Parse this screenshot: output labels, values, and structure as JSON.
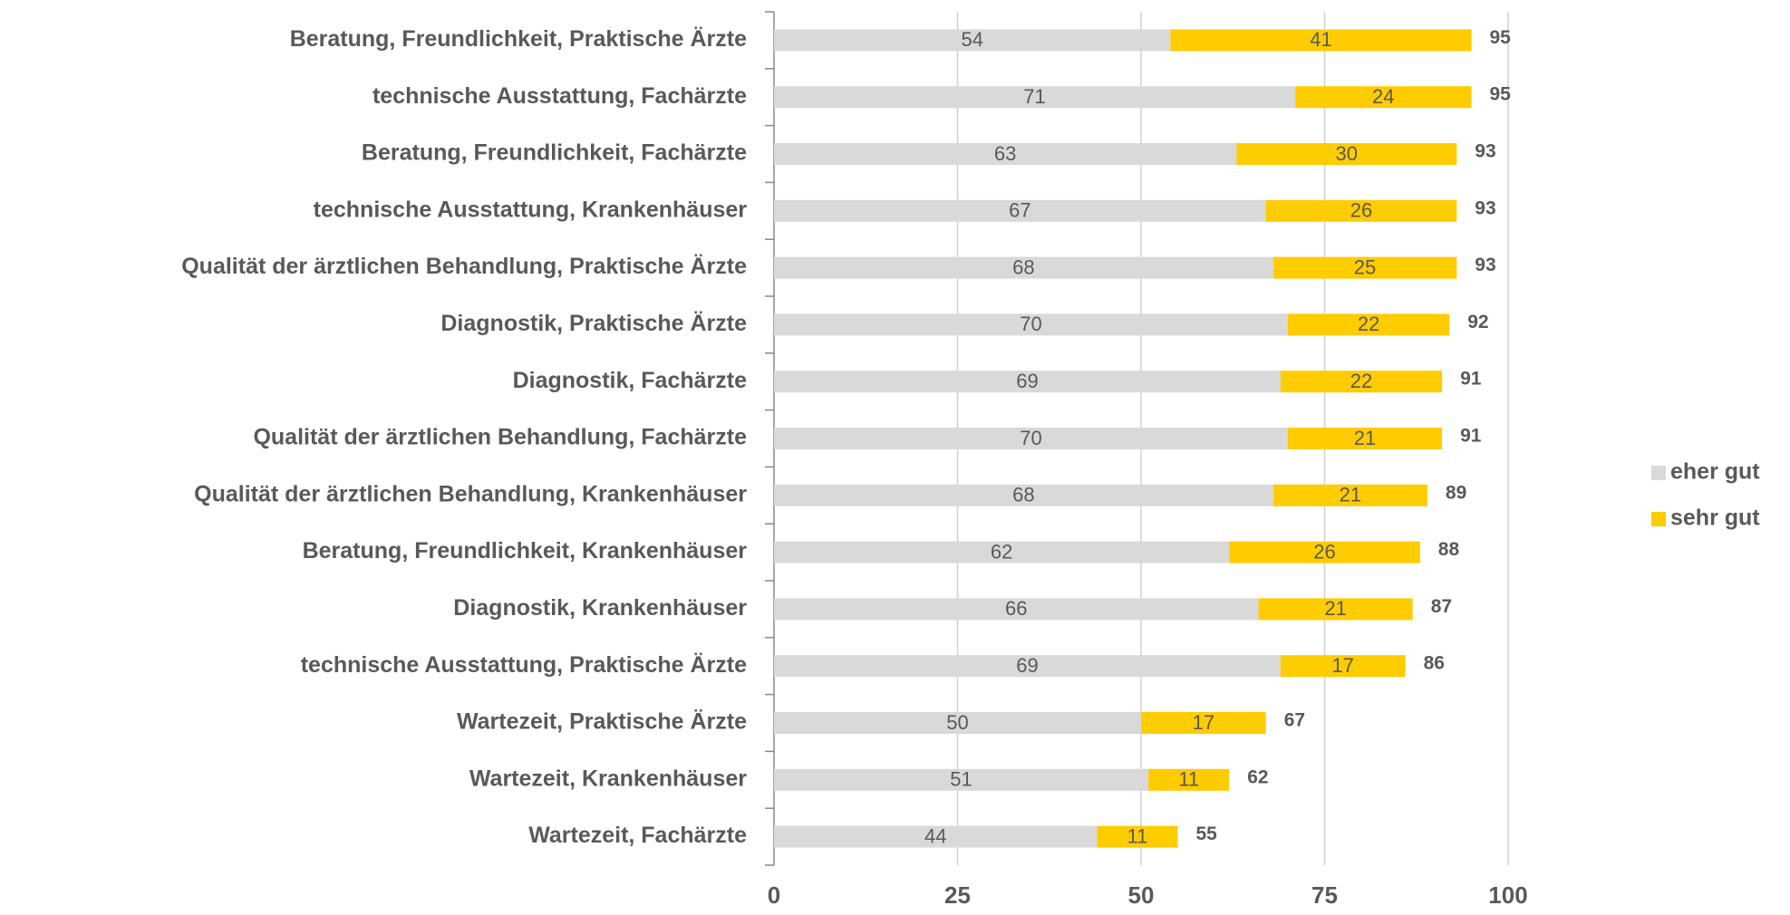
{
  "chart_data": {
    "type": "stacked-bar-horizontal",
    "categories": [
      "Beratung, Freundlichkeit, Praktische Ärzte",
      "technische Ausstattung, Fachärzte",
      "Beratung, Freundlichkeit, Fachärzte",
      "technische Ausstattung, Krankenhäuser",
      "Qualität der ärztlichen Behandlung, Praktische Ärzte",
      "Diagnostik, Praktische Ärzte",
      "Diagnostik, Fachärzte",
      "Qualität der ärztlichen Behandlung, Fachärzte",
      "Qualität der ärztlichen Behandlung, Krankenhäuser",
      "Beratung, Freundlichkeit, Krankenhäuser",
      "Diagnostik, Krankenhäuser",
      "technische Ausstattung, Praktische Ärzte",
      "Wartezeit, Praktische Ärzte",
      "Wartezeit, Krankenhäuser",
      "Wartezeit, Fachärzte"
    ],
    "series": [
      {
        "name": "eher gut",
        "color": "#d9d9d9",
        "values": [
          54,
          71,
          63,
          67,
          68,
          70,
          69,
          70,
          68,
          62,
          66,
          69,
          50,
          51,
          44
        ]
      },
      {
        "name": "sehr gut",
        "color": "#ffcc00",
        "values": [
          41,
          24,
          30,
          26,
          25,
          22,
          22,
          21,
          21,
          26,
          21,
          17,
          17,
          11,
          11
        ]
      }
    ],
    "totals": [
      95,
      95,
      93,
      93,
      93,
      92,
      91,
      91,
      89,
      88,
      87,
      86,
      67,
      62,
      55
    ],
    "xlim": [
      0,
      100
    ],
    "xticks": [
      0,
      25,
      50,
      75,
      100
    ],
    "grid": true,
    "legend": "right"
  }
}
